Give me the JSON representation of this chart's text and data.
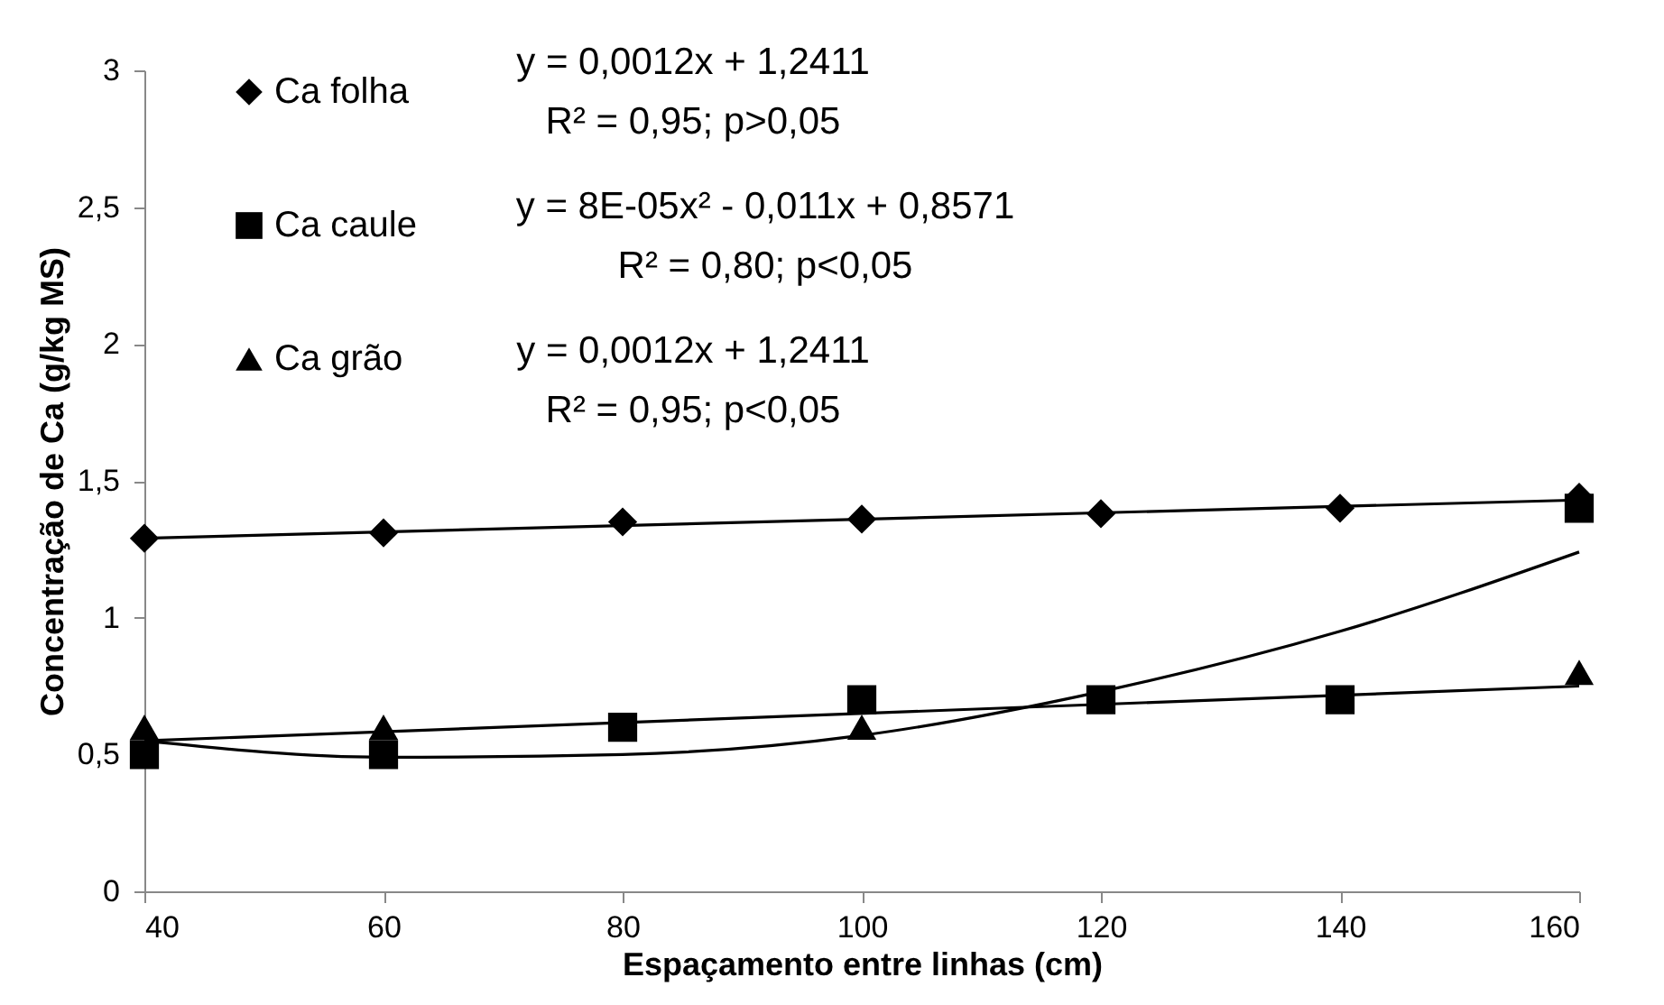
{
  "chart_data": {
    "type": "scatter",
    "xlabel": "Espaçamento entre linhas (cm)",
    "ylabel": "Concentração de Ca (g/kg MS)",
    "x": [
      40,
      60,
      80,
      100,
      120,
      140,
      160
    ],
    "series": [
      {
        "name": "Ca folha",
        "type": "scatter",
        "marker": "diamond",
        "color": "#000000",
        "values": [
          1.29,
          1.31,
          1.35,
          1.36,
          1.38,
          1.4,
          1.44
        ]
      },
      {
        "name": "Ca caule",
        "type": "scatter",
        "marker": "square",
        "color": "#000000",
        "values": [
          0.5,
          0.5,
          0.6,
          0.7,
          0.7,
          0.7,
          1.4
        ]
      },
      {
        "name": "Ca grão",
        "type": "scatter",
        "marker": "triangle",
        "color": "#000000",
        "values": [
          0.6,
          0.6,
          null,
          0.6,
          null,
          null,
          0.8
        ]
      },
      {
        "type": "line",
        "color": "#000000",
        "x": [
          40,
          160
        ],
        "values": [
          1.29,
          1.43
        ]
      },
      {
        "type": "line",
        "color": "#000000",
        "x": [
          40,
          60,
          80,
          100,
          120,
          140,
          160
        ],
        "values": [
          0.55,
          0.49,
          0.5,
          0.57,
          0.73,
          0.95,
          1.24
        ]
      },
      {
        "type": "line",
        "color": "#000000",
        "x": [
          40,
          160
        ],
        "values": [
          0.55,
          0.75
        ]
      }
    ],
    "xlim": [
      40,
      160
    ],
    "xticks": [
      40,
      60,
      80,
      100,
      120,
      140,
      160
    ],
    "ylim": [
      0,
      3
    ],
    "yticks": [
      0,
      {
        "value": 0.5,
        "label": "0,5"
      },
      1,
      {
        "value": 1.5,
        "label": "1,5"
      },
      2,
      {
        "value": 2.5,
        "label": "2,5"
      },
      3
    ],
    "annotations": [
      "y = 0,0012x + 1,2411",
      "R² = 0,95; p>0,05",
      "y = 8E-05x² - 0,011x + 0,8571",
      "R² = 0,80; p<0,05",
      "y = 0,0012x + 1,2411",
      "R² = 0,95; p<0,05"
    ],
    "legend": "top left",
    "grid": false
  }
}
